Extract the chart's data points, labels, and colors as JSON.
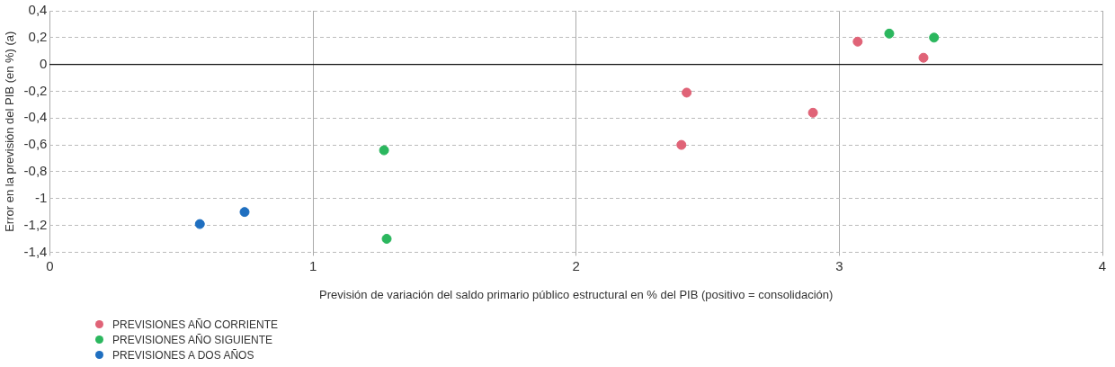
{
  "chart_data": {
    "type": "scatter",
    "xlabel": "Previsión de variación del saldo primario público estructural en % del PIB (positivo = consolidación)",
    "ylabel": "Error en la previsión del PIB (en %) (a)",
    "xlim": [
      0,
      4
    ],
    "xticks": [
      0,
      1,
      2,
      3,
      4
    ],
    "ylim": [
      -1.4,
      0.4
    ],
    "yticks": [
      {
        "value": 0.4,
        "label": "0,4"
      },
      {
        "value": 0.2,
        "label": "0,2"
      },
      0,
      {
        "value": -0.2,
        "label": "-0,2"
      },
      {
        "value": -0.4,
        "label": "-0,4"
      },
      {
        "value": -0.6,
        "label": "-0,6"
      },
      {
        "value": -0.8,
        "label": "-0,8"
      },
      -1,
      {
        "value": -1.2,
        "label": "-1,2"
      },
      {
        "value": -1.4,
        "label": "-1,4"
      }
    ],
    "grid": true,
    "legend": "bottom left",
    "marker": "circle",
    "series": [
      {
        "name": "PREVISIONES AÑO CORRIENTE",
        "color": "#e06377",
        "x": [
          3.07,
          3.32,
          2.42,
          2.9,
          2.4
        ],
        "values": [
          0.17,
          0.05,
          -0.21,
          -0.36,
          -0.6
        ]
      },
      {
        "name": "PREVISIONES AÑO SIGUIENTE",
        "color": "#2bb75e",
        "x": [
          3.19,
          3.36,
          1.27,
          1.28
        ],
        "values": [
          0.23,
          0.2,
          -0.64,
          -1.3
        ]
      },
      {
        "name": "PREVISIONES A DOS AÑOS",
        "color": "#1f6fc0",
        "x": [
          0.57,
          0.74
        ],
        "values": [
          -1.19,
          -1.1
        ]
      }
    ]
  }
}
